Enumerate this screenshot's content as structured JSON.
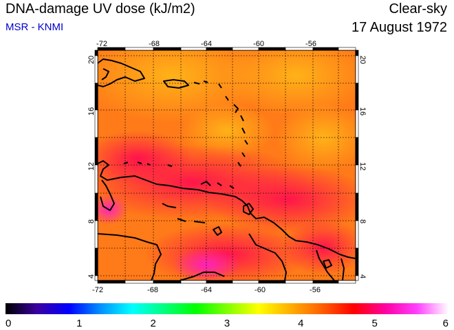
{
  "header": {
    "title": "DNA-damage UV dose (kJ/m2)",
    "source": "MSR - KNMI",
    "condition": "Clear-sky",
    "date": "17 August 1972"
  },
  "map": {
    "lon_ticks": [
      "-72",
      "-68",
      "-64",
      "-60",
      "-56"
    ],
    "lat_ticks": [
      "20",
      "16",
      "12",
      "8",
      "4"
    ],
    "lon_range": [
      -72,
      -52.5
    ],
    "lat_range": [
      3.5,
      20.5
    ]
  },
  "colorbar": {
    "labels": [
      "0",
      "1",
      "2",
      "3",
      "4",
      "5",
      "6"
    ],
    "range": [
      0,
      6
    ],
    "colors": [
      "#000000",
      "#3a00a0",
      "#0000ff",
      "#0090ff",
      "#00ffff",
      "#00ff80",
      "#00ff00",
      "#80ff00",
      "#ffff00",
      "#ffb000",
      "#ff6000",
      "#ff0000",
      "#ff00a0",
      "#ff40ff",
      "#ffffff"
    ]
  },
  "colors": {
    "field_low": "#ff9a10",
    "field_high": "#ff1a40",
    "coast": "#000000"
  }
}
